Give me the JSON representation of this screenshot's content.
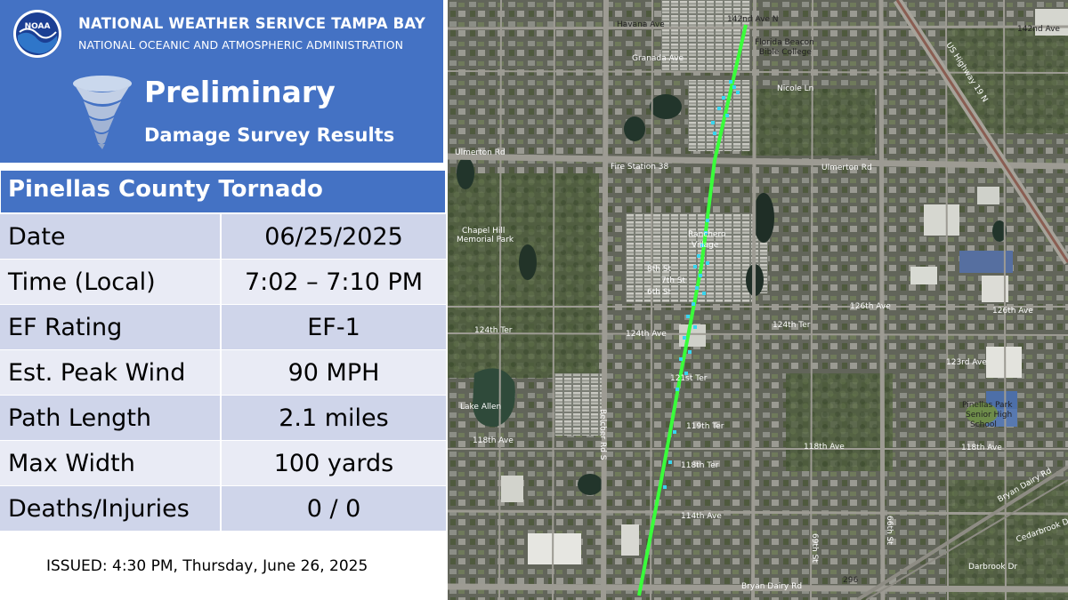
{
  "header": {
    "org_line1": "NATIONAL WEATHER SERIVCE TAMPA BAY",
    "org_line2": "NATIONAL OCEANIC AND ATMOSPHERIC ADMINISTRATION",
    "logo_text": "NOAA",
    "logo_icon": "noaa-logo",
    "tornado_icon": "tornado-icon",
    "title_line1": "Preliminary",
    "title_line2": "Damage Survey Results"
  },
  "table": {
    "title": "Pinellas County Tornado",
    "rows": [
      {
        "label": "Date",
        "value": "06/25/2025"
      },
      {
        "label": "Time (Local)",
        "value": "7:02 – 7:10 PM"
      },
      {
        "label": "EF Rating",
        "value": "EF-1"
      },
      {
        "label": "Est. Peak Wind",
        "value": "90 MPH"
      },
      {
        "label": "Path Length",
        "value": "2.1 miles"
      },
      {
        "label": "Max Width",
        "value": "100 yards"
      },
      {
        "label": "Deaths/Injuries",
        "value": "0 / 0"
      }
    ]
  },
  "issued": "ISSUED:  4:30 PM, Thursday, June 26, 2025",
  "map": {
    "track_color": "#39ff3a",
    "damage_point_color": "#38d6f0",
    "labels": {
      "ave_142nd_n": "142nd Ave N",
      "havana_ave": "Havana Ave",
      "ave_142nd": "142nd Ave",
      "florida_beacon": "Florida Beacon",
      "bible_college": "Bible College",
      "granada_ave": "Granada Ave",
      "nicole_ln": "Nicole Ln",
      "ulmerton_rd_w": "Ulmerton Rd",
      "ulmerton_rd_e": "Ulmerton Rd",
      "fire_station": "Fire Station 38",
      "chapel_hill": "Chapel Hill",
      "memorial_park": "Memorial Park",
      "ranchero": "Ranchero",
      "village": "Village",
      "st_8th": "8th St",
      "st_7th": "7th St",
      "st_6th": "6th St",
      "ave_126th": "126th Ave",
      "ave_126th_e": "126th Ave",
      "ave_124th": "124th Ave",
      "ter_124th": "124th Ter",
      "ter_124th_w": "124th Ter",
      "ave_123rd": "123rd Ave",
      "ter_121st": "121st Ter",
      "ave_118th": "118th Ave",
      "ave_118th_e": "118th Ave",
      "ave_118th_s": "118th Ave",
      "ter_119th": "119th Ter",
      "ter_118th": "118th Ter",
      "ave_114th": "114th Ave",
      "bryan_dairy": "Bryan Dairy Rd",
      "bryan_dairy_e": "Bryan Dairy Rd",
      "lake_allen": "Lake Allen",
      "pinellas_park": "Pinellas Park",
      "senior_high": "Senior High",
      "school": "School",
      "belcher_rd": "Belcher Rd S",
      "us_highway": "US Highway 19 N",
      "rd_296": "296",
      "cedarbrook": "Cedarbrook Dr",
      "darbrook": "Darbrook Dr",
      "st_66th": "66th St",
      "st_69th": "69th St"
    }
  }
}
